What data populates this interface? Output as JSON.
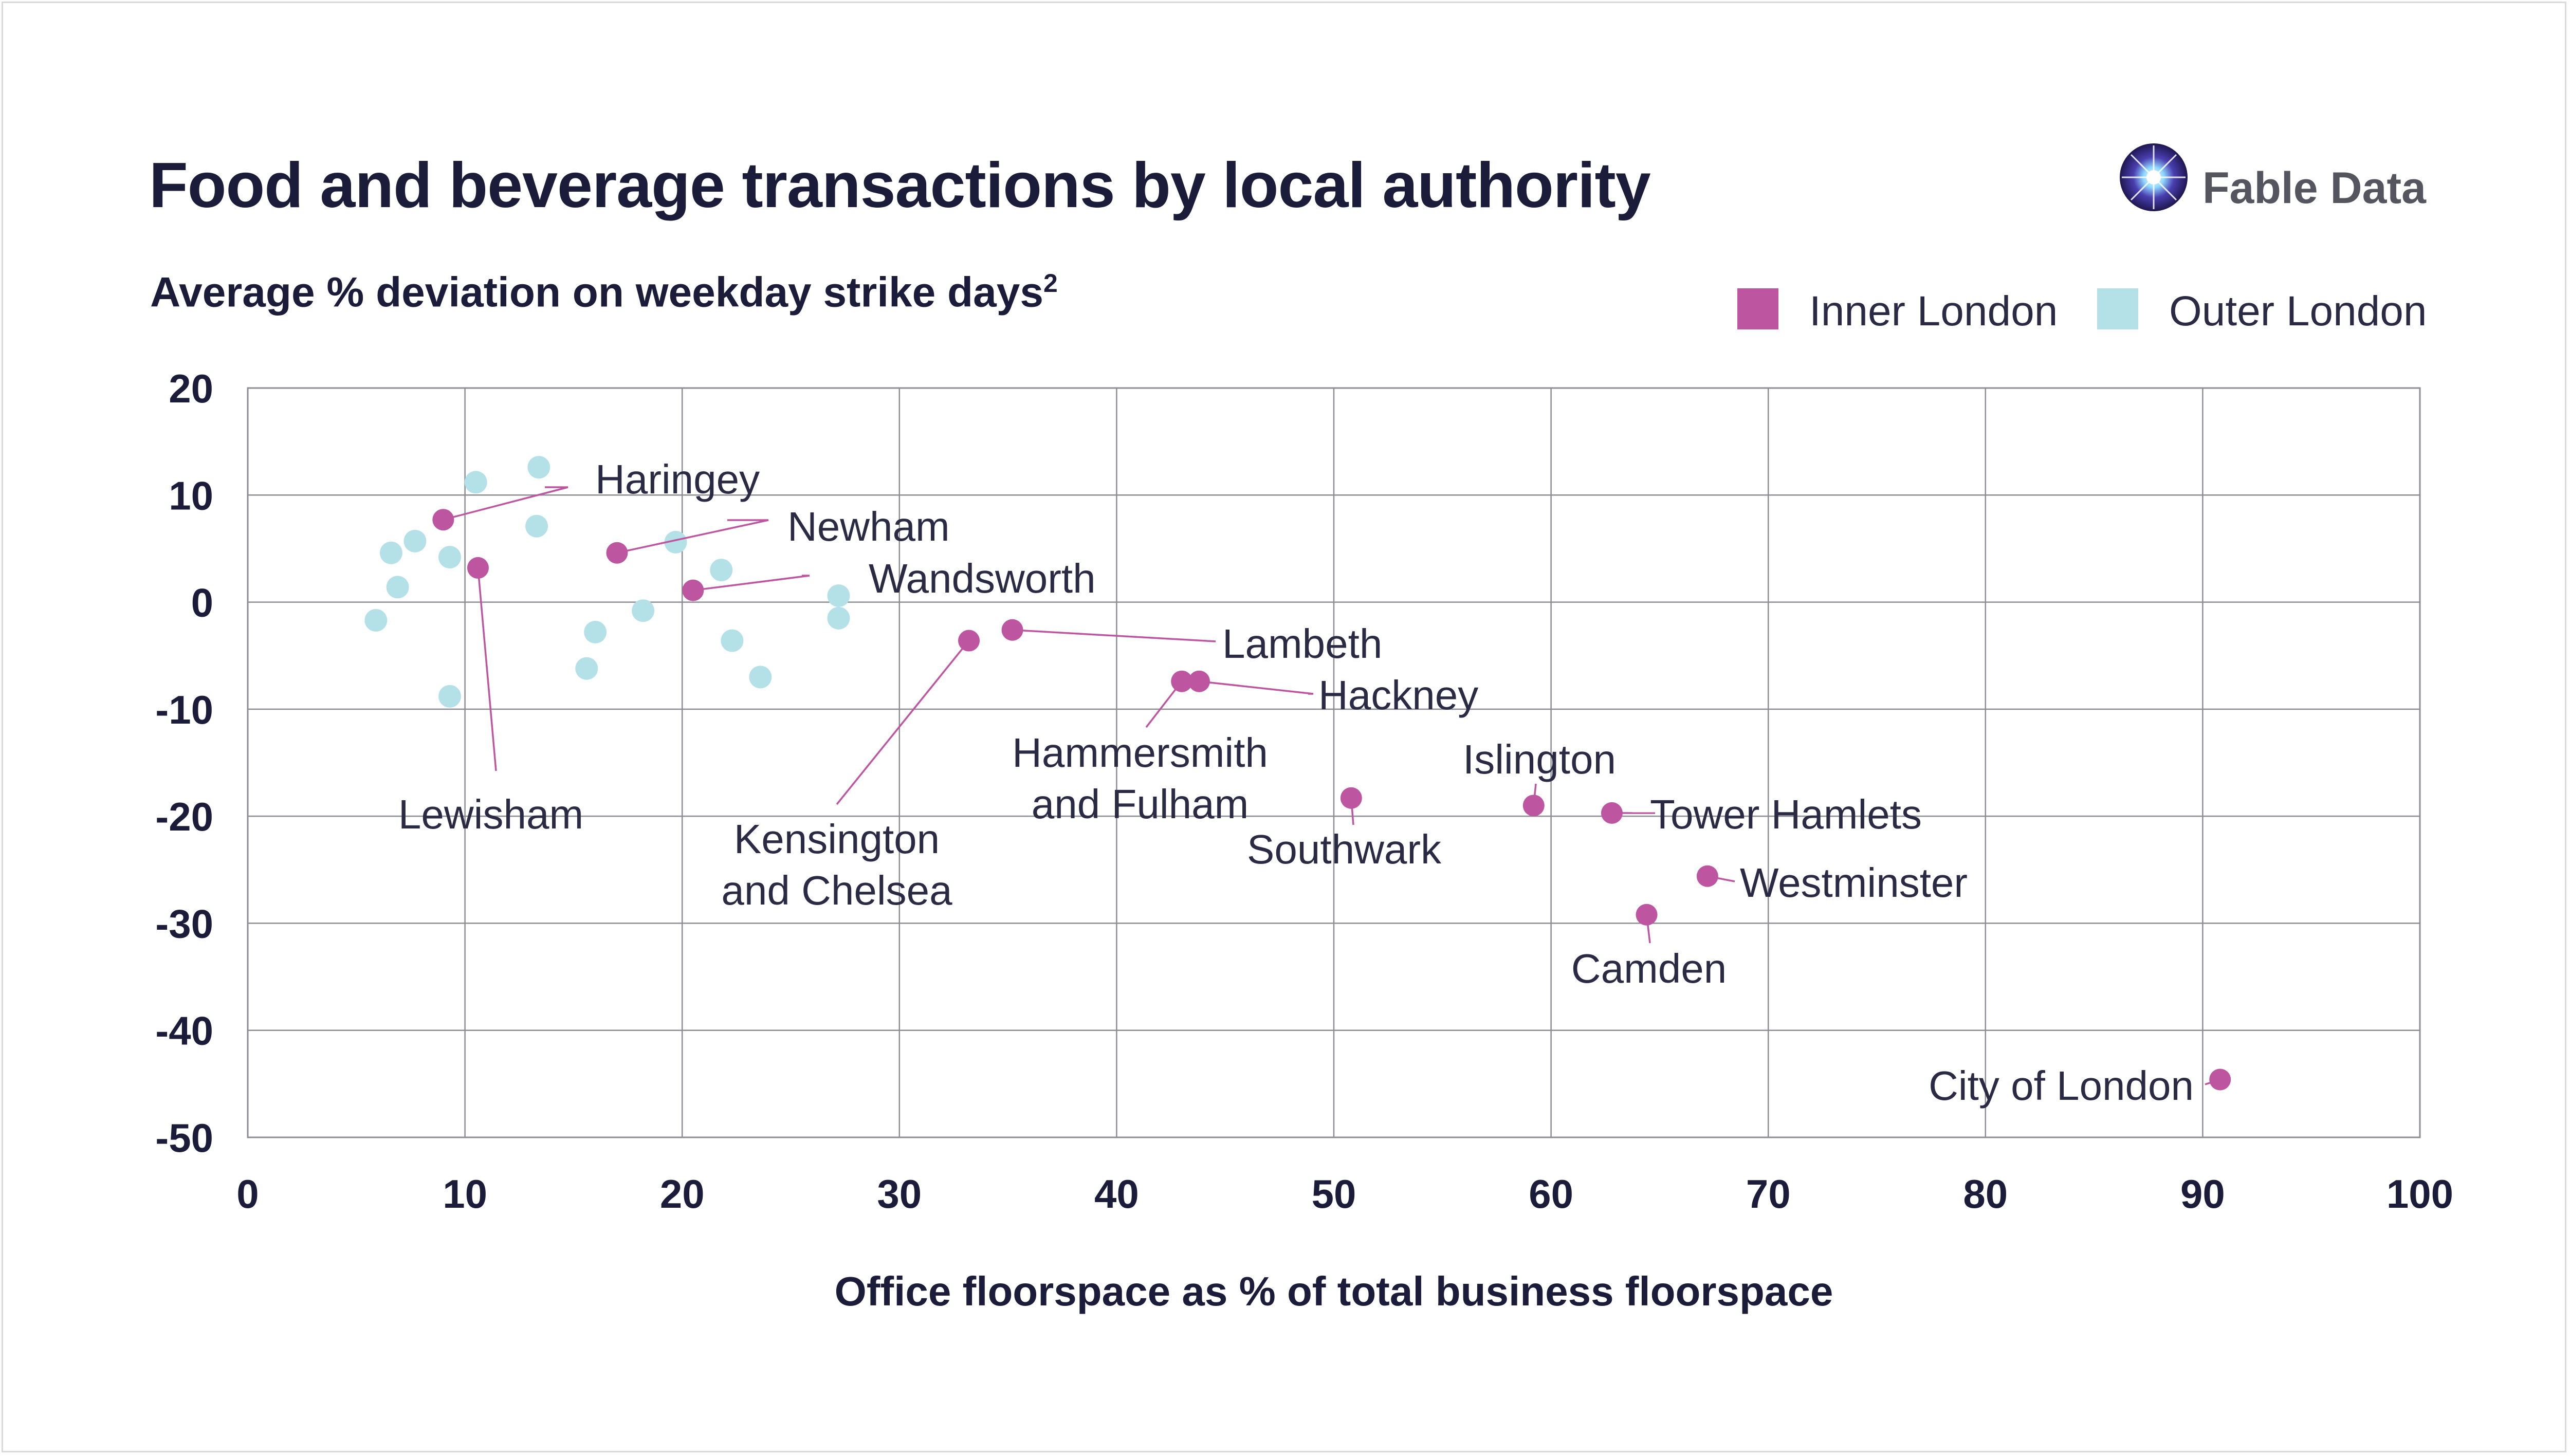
{
  "header": {
    "title": "Food and beverage transactions by local authority",
    "subtitle": "Average % deviation on weekday strike days",
    "subtitle_superscript": "2"
  },
  "brand": {
    "name": "Fable Data",
    "icon": "starburst-logo-icon"
  },
  "legend": {
    "items": [
      {
        "label": "Inner London",
        "color": "#be55a0"
      },
      {
        "label": "Outer London",
        "color": "#b4e1e8"
      }
    ]
  },
  "colors": {
    "inner": "#be55a0",
    "outer": "#b4e1e8",
    "grid": "#8c8c94",
    "text": "#1b1b3a"
  },
  "chart_data": {
    "type": "scatter",
    "xlabel": "Office floorspace as % of total business floorspace",
    "ylabel": "",
    "xlim": [
      0,
      100
    ],
    "ylim": [
      -50,
      20
    ],
    "x_ticks": [
      0,
      10,
      20,
      30,
      40,
      50,
      60,
      70,
      80,
      90,
      100
    ],
    "y_ticks": [
      20,
      10,
      0,
      -10,
      -20,
      -30,
      -40,
      -50
    ],
    "grid": true,
    "legend_position": "top-right",
    "series": [
      {
        "name": "Inner London",
        "points": [
          {
            "x": 9.0,
            "y": 7.7,
            "label": "Haringey"
          },
          {
            "x": 17.0,
            "y": 4.6,
            "label": "Newham"
          },
          {
            "x": 20.5,
            "y": 1.1,
            "label": "Wandsworth"
          },
          {
            "x": 10.6,
            "y": 3.2,
            "label": "Lewisham"
          },
          {
            "x": 33.2,
            "y": -3.6,
            "label": "Kensington and Chelsea"
          },
          {
            "x": 35.2,
            "y": -2.6,
            "label": "Lambeth"
          },
          {
            "x": 43.0,
            "y": -7.4,
            "label": "Hammersmith and Fulham"
          },
          {
            "x": 43.8,
            "y": -7.4,
            "label": "Hackney"
          },
          {
            "x": 50.8,
            "y": -18.3,
            "label": "Southwark"
          },
          {
            "x": 59.2,
            "y": -19.0,
            "label": "Islington"
          },
          {
            "x": 62.8,
            "y": -19.7,
            "label": "Tower Hamlets"
          },
          {
            "x": 64.4,
            "y": -29.2,
            "label": "Camden"
          },
          {
            "x": 67.2,
            "y": -25.6,
            "label": "Westminster"
          },
          {
            "x": 90.8,
            "y": -44.6,
            "label": "City of London"
          }
        ]
      },
      {
        "name": "Outer London",
        "points": [
          {
            "x": 5.9,
            "y": -1.7
          },
          {
            "x": 6.6,
            "y": 4.6
          },
          {
            "x": 6.9,
            "y": 1.4
          },
          {
            "x": 7.7,
            "y": 5.7
          },
          {
            "x": 9.3,
            "y": 4.2
          },
          {
            "x": 9.3,
            "y": -8.8
          },
          {
            "x": 10.5,
            "y": 11.2
          },
          {
            "x": 13.3,
            "y": 7.1
          },
          {
            "x": 13.4,
            "y": 12.6
          },
          {
            "x": 15.6,
            "y": -6.2
          },
          {
            "x": 16.0,
            "y": -2.8
          },
          {
            "x": 18.2,
            "y": -0.8
          },
          {
            "x": 19.7,
            "y": 5.6
          },
          {
            "x": 21.8,
            "y": 3.0
          },
          {
            "x": 22.3,
            "y": -3.6
          },
          {
            "x": 23.6,
            "y": -7.0
          },
          {
            "x": 27.2,
            "y": 0.6
          },
          {
            "x": 27.2,
            "y": -1.5
          }
        ]
      }
    ]
  }
}
